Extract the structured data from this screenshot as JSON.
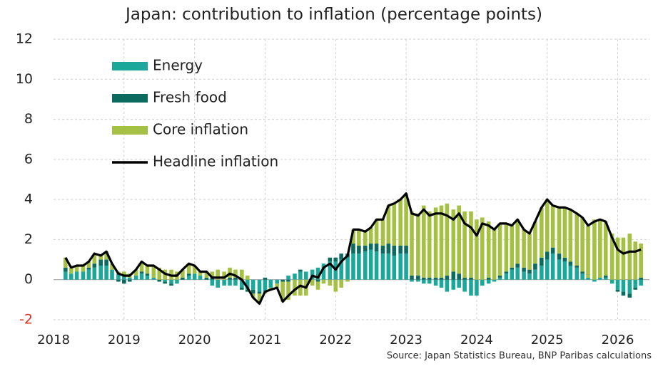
{
  "chart_data": {
    "type": "bar",
    "stacked": true,
    "title": "Japan: contribution to inflation (percentage points)",
    "source": "Source: Japan Statistics Bureau, BNP Paribas calculations",
    "ylim": [
      -2,
      12
    ],
    "yticks": [
      -2,
      0,
      2,
      4,
      6,
      8,
      10,
      12
    ],
    "negative_tick_color": "#e0301e",
    "xlim": [
      2018,
      2026.45
    ],
    "xticks": [
      2018,
      2019,
      2020,
      2021,
      2022,
      2023,
      2024,
      2025,
      2026
    ],
    "grid": true,
    "legend": "top-left",
    "x": [
      2018.17,
      2018.25,
      2018.33,
      2018.42,
      2018.5,
      2018.58,
      2018.67,
      2018.75,
      2018.83,
      2018.92,
      2019,
      2019.08,
      2019.17,
      2019.25,
      2019.33,
      2019.42,
      2019.5,
      2019.58,
      2019.67,
      2019.75,
      2019.83,
      2019.92,
      2020,
      2020.08,
      2020.17,
      2020.25,
      2020.33,
      2020.42,
      2020.5,
      2020.58,
      2020.67,
      2020.75,
      2020.83,
      2020.92,
      2021,
      2021.08,
      2021.17,
      2021.25,
      2021.33,
      2021.42,
      2021.5,
      2021.58,
      2021.67,
      2021.75,
      2021.83,
      2021.92,
      2022,
      2022.08,
      2022.17,
      2022.25,
      2022.33,
      2022.42,
      2022.5,
      2022.58,
      2022.67,
      2022.75,
      2022.83,
      2022.92,
      2023,
      2023.08,
      2023.17,
      2023.25,
      2023.33,
      2023.42,
      2023.5,
      2023.58,
      2023.67,
      2023.75,
      2023.83,
      2023.92,
      2024,
      2024.08,
      2024.17,
      2024.25,
      2024.33,
      2024.42,
      2024.5,
      2024.58,
      2024.67,
      2024.75,
      2024.83,
      2024.92,
      2025,
      2025.08,
      2025.17,
      2025.25,
      2025.33,
      2025.42,
      2025.5,
      2025.58,
      2025.67,
      2025.75,
      2025.83,
      2025.92,
      2026,
      2026.08,
      2026.17,
      2026.25,
      2026.33
    ],
    "series": [
      {
        "name": "Energy",
        "color": "#1ba89b",
        "type": "bar",
        "values": [
          0.4,
          0.3,
          0.4,
          0.4,
          0.5,
          0.6,
          0.7,
          0.7,
          0.5,
          0.3,
          0.2,
          0.1,
          0.2,
          0.3,
          0.2,
          0.1,
          0.0,
          -0.1,
          -0.2,
          -0.2,
          0.0,
          0.2,
          0.3,
          0.2,
          0.0,
          -0.3,
          -0.4,
          -0.3,
          -0.3,
          -0.3,
          -0.4,
          -0.5,
          -0.5,
          -0.6,
          -0.6,
          -0.4,
          -0.2,
          0.0,
          0.2,
          0.3,
          0.4,
          0.4,
          0.5,
          0.6,
          0.8,
          0.9,
          0.9,
          1.0,
          1.1,
          1.3,
          1.3,
          1.4,
          1.5,
          1.4,
          1.3,
          1.3,
          1.2,
          1.3,
          1.3,
          -0.1,
          -0.1,
          -0.2,
          -0.2,
          -0.3,
          -0.4,
          -0.6,
          -0.5,
          -0.4,
          -0.6,
          -0.8,
          -0.8,
          -0.3,
          -0.2,
          -0.1,
          0.1,
          0.3,
          0.5,
          0.6,
          0.4,
          0.3,
          0.5,
          0.7,
          1.0,
          1.3,
          1.0,
          0.9,
          0.7,
          0.6,
          0.3,
          0.1,
          -0.1,
          0.1,
          0.1,
          -0.2,
          -0.5,
          -0.6,
          -0.7,
          -0.4,
          -0.3
        ]
      },
      {
        "name": "Fresh food",
        "color": "#0b6b5f",
        "type": "bar",
        "values": [
          0.2,
          0.0,
          0.0,
          0.0,
          0.1,
          0.2,
          0.3,
          0.3,
          0.0,
          -0.1,
          -0.2,
          -0.1,
          0.0,
          0.1,
          0.1,
          0.0,
          -0.1,
          -0.1,
          -0.1,
          0.0,
          0.1,
          0.1,
          0.0,
          0.0,
          0.1,
          0.1,
          0.0,
          0.0,
          0.1,
          0.1,
          -0.1,
          -0.1,
          -0.2,
          -0.1,
          0.1,
          0.0,
          0.0,
          -0.1,
          -0.1,
          0.0,
          0.1,
          0.0,
          0.0,
          -0.1,
          0.0,
          0.2,
          0.2,
          0.3,
          0.2,
          0.5,
          0.4,
          0.3,
          0.3,
          0.4,
          0.4,
          0.5,
          0.5,
          0.4,
          0.4,
          0.2,
          0.2,
          0.1,
          0.1,
          0.1,
          0.1,
          0.2,
          0.4,
          0.3,
          0.1,
          0.1,
          0.0,
          0.0,
          0.1,
          0.0,
          0.1,
          0.1,
          0.1,
          0.2,
          0.2,
          0.2,
          0.3,
          0.4,
          0.4,
          0.3,
          0.3,
          0.2,
          0.2,
          0.1,
          0.1,
          0.0,
          0.0,
          0.0,
          0.1,
          0.0,
          -0.1,
          -0.2,
          -0.2,
          -0.1,
          0.1
        ]
      },
      {
        "name": "Core inflation",
        "color": "#a4c143",
        "type": "bar",
        "values": [
          0.5,
          0.3,
          0.3,
          0.3,
          0.3,
          0.5,
          0.2,
          0.4,
          0.3,
          0.1,
          0.2,
          0.2,
          0.3,
          0.5,
          0.4,
          0.6,
          0.6,
          0.5,
          0.5,
          0.4,
          0.4,
          0.5,
          0.4,
          0.2,
          0.3,
          0.3,
          0.5,
          0.4,
          0.5,
          0.4,
          0.5,
          0.2,
          -0.2,
          -0.5,
          -0.1,
          -0.1,
          -0.2,
          -1.0,
          -0.9,
          -0.8,
          -0.8,
          -0.8,
          -0.3,
          -0.4,
          -0.2,
          -0.3,
          -0.6,
          -0.4,
          -0.1,
          0.7,
          0.8,
          0.7,
          0.8,
          1.2,
          1.3,
          1.9,
          2.1,
          2.3,
          2.6,
          3.2,
          3.1,
          3.6,
          3.3,
          3.5,
          3.6,
          3.6,
          3.1,
          3.4,
          3.3,
          3.3,
          3.0,
          3.1,
          2.8,
          2.6,
          2.6,
          2.4,
          2.1,
          2.2,
          1.9,
          1.8,
          2.1,
          2.5,
          2.6,
          2.1,
          2.3,
          2.5,
          2.6,
          2.6,
          2.7,
          2.6,
          3.0,
          2.9,
          2.7,
          2.3,
          2.1,
          2.1,
          2.3,
          1.9,
          1.7
        ]
      },
      {
        "name": "Headline inflation",
        "color": "#000000",
        "type": "line",
        "values": [
          1.1,
          0.6,
          0.7,
          0.7,
          0.9,
          1.3,
          1.2,
          1.4,
          0.8,
          0.3,
          0.2,
          0.2,
          0.5,
          0.9,
          0.7,
          0.7,
          0.5,
          0.3,
          0.2,
          0.2,
          0.5,
          0.8,
          0.7,
          0.4,
          0.4,
          0.1,
          0.1,
          0.1,
          0.3,
          0.2,
          0.0,
          -0.4,
          -0.9,
          -1.2,
          -0.6,
          -0.5,
          -0.4,
          -1.1,
          -0.8,
          -0.5,
          -0.3,
          -0.4,
          0.2,
          0.1,
          0.6,
          0.8,
          0.5,
          0.9,
          1.2,
          2.5,
          2.5,
          2.4,
          2.6,
          3.0,
          3.0,
          3.7,
          3.8,
          4.0,
          4.3,
          3.3,
          3.2,
          3.5,
          3.2,
          3.3,
          3.3,
          3.2,
          3.0,
          3.3,
          2.8,
          2.6,
          2.2,
          2.8,
          2.7,
          2.5,
          2.8,
          2.8,
          2.7,
          3.0,
          2.5,
          2.3,
          2.9,
          3.6,
          4.0,
          3.7,
          3.6,
          3.6,
          3.5,
          3.3,
          3.1,
          2.7,
          2.9,
          3.0,
          2.9,
          2.1,
          1.5,
          1.3,
          1.4,
          1.4,
          1.5
        ]
      }
    ]
  }
}
